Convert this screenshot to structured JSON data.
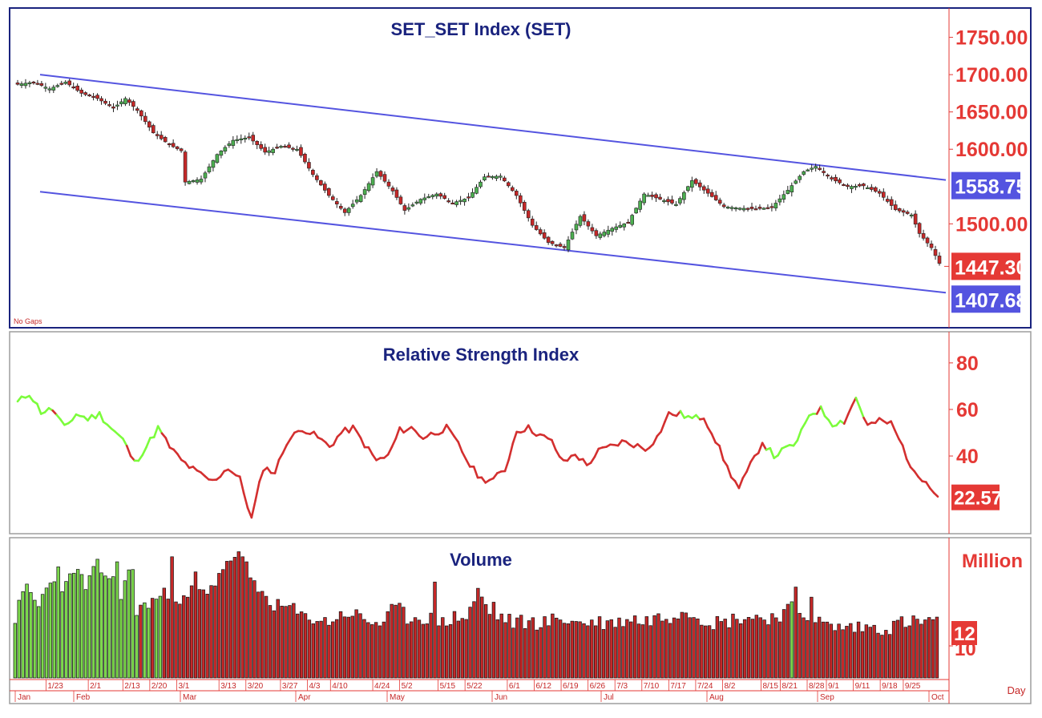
{
  "chart_data": [
    {
      "type": "candlestick",
      "title": "SET_SET Index  (SET)",
      "note": "No Gaps",
      "y_ticks": [
        "1750.00",
        "1700.00",
        "1650.00",
        "1600.00",
        "1500.00"
      ],
      "y_tick_values": [
        1750,
        1700,
        1650,
        1600,
        1500
      ],
      "ylim": [
        1365,
        1785
      ],
      "last_price": "1447.30",
      "channel_upper_label": "1558.75",
      "channel_lower_label": "1407.68",
      "channel_upper": {
        "start": 1700,
        "end": 1558.75
      },
      "channel_lower": {
        "start": 1543,
        "end": 1407.68
      },
      "anchor_closes": [
        [
          0,
          1687
        ],
        [
          4,
          1690
        ],
        [
          8,
          1681
        ],
        [
          12,
          1690
        ],
        [
          16,
          1675
        ],
        [
          20,
          1668
        ],
        [
          24,
          1655
        ],
        [
          27,
          1668
        ],
        [
          30,
          1652
        ],
        [
          34,
          1622
        ],
        [
          38,
          1606
        ],
        [
          41,
          1598
        ],
        [
          42,
          1556
        ],
        [
          46,
          1560
        ],
        [
          50,
          1593
        ],
        [
          54,
          1612
        ],
        [
          58,
          1616
        ],
        [
          62,
          1596
        ],
        [
          66,
          1604
        ],
        [
          70,
          1600
        ],
        [
          74,
          1566
        ],
        [
          78,
          1538
        ],
        [
          82,
          1515
        ],
        [
          86,
          1538
        ],
        [
          90,
          1570
        ],
        [
          94,
          1544
        ],
        [
          97,
          1518
        ],
        [
          101,
          1533
        ],
        [
          105,
          1540
        ],
        [
          109,
          1528
        ],
        [
          113,
          1535
        ],
        [
          117,
          1563
        ],
        [
          121,
          1564
        ],
        [
          125,
          1538
        ],
        [
          129,
          1498
        ],
        [
          133,
          1475
        ],
        [
          137,
          1468
        ],
        [
          141,
          1510
        ],
        [
          145,
          1484
        ],
        [
          149,
          1494
        ],
        [
          153,
          1502
        ],
        [
          157,
          1540
        ],
        [
          161,
          1533
        ],
        [
          165,
          1526
        ],
        [
          169,
          1558
        ],
        [
          173,
          1541
        ],
        [
          177,
          1523
        ],
        [
          181,
          1521
        ],
        [
          185,
          1520
        ],
        [
          189,
          1522
        ],
        [
          193,
          1545
        ],
        [
          197,
          1570
        ],
        [
          200,
          1577
        ],
        [
          204,
          1560
        ],
        [
          208,
          1550
        ],
        [
          212,
          1551
        ],
        [
          216,
          1541
        ],
        [
          220,
          1519
        ],
        [
          224,
          1512
        ],
        [
          226,
          1487
        ],
        [
          229,
          1468
        ],
        [
          231,
          1447
        ]
      ],
      "candle_colors": {
        "up": "#4caf50",
        "down": "#c62828",
        "channel": "#5454e0"
      }
    },
    {
      "type": "line",
      "title": "Relative Strength Index",
      "y_ticks": [
        "80",
        "60",
        "40"
      ],
      "y_tick_values": [
        80,
        60,
        40
      ],
      "ylim": [
        8,
        92
      ],
      "last_value": "22.57",
      "anchors": [
        [
          0,
          63
        ],
        [
          3,
          67
        ],
        [
          6,
          59
        ],
        [
          9,
          60
        ],
        [
          12,
          52
        ],
        [
          15,
          58
        ],
        [
          18,
          56
        ],
        [
          21,
          58
        ],
        [
          24,
          52
        ],
        [
          27,
          47
        ],
        [
          30,
          37
        ],
        [
          33,
          44
        ],
        [
          36,
          52
        ],
        [
          39,
          44
        ],
        [
          42,
          38
        ],
        [
          46,
          33
        ],
        [
          50,
          29
        ],
        [
          54,
          35
        ],
        [
          57,
          30
        ],
        [
          60,
          13
        ],
        [
          63,
          35
        ],
        [
          66,
          33
        ],
        [
          69,
          46
        ],
        [
          73,
          52
        ],
        [
          77,
          48
        ],
        [
          80,
          44
        ],
        [
          83,
          50
        ],
        [
          86,
          52
        ],
        [
          89,
          45
        ],
        [
          92,
          38
        ],
        [
          95,
          40
        ],
        [
          98,
          51
        ],
        [
          101,
          52
        ],
        [
          104,
          48
        ],
        [
          107,
          50
        ],
        [
          110,
          52
        ],
        [
          113,
          45
        ],
        [
          116,
          36
        ],
        [
          119,
          30
        ],
        [
          122,
          30
        ],
        [
          125,
          34
        ],
        [
          128,
          51
        ],
        [
          131,
          52
        ],
        [
          134,
          49
        ],
        [
          137,
          46
        ],
        [
          140,
          37
        ],
        [
          143,
          41
        ],
        [
          146,
          36
        ],
        [
          149,
          42
        ],
        [
          152,
          44
        ],
        [
          155,
          46
        ],
        [
          158,
          45
        ],
        [
          161,
          43
        ],
        [
          164,
          48
        ],
        [
          167,
          58
        ],
        [
          170,
          58
        ],
        [
          173,
          56
        ],
        [
          176,
          57
        ],
        [
          179,
          47
        ],
        [
          182,
          35
        ],
        [
          185,
          26
        ],
        [
          188,
          36
        ],
        [
          191,
          46
        ],
        [
          194,
          40
        ],
        [
          197,
          43
        ],
        [
          200,
          46
        ],
        [
          203,
          58
        ],
        [
          206,
          60
        ],
        [
          209,
          54
        ],
        [
          212,
          55
        ],
        [
          215,
          65
        ],
        [
          218,
          53
        ],
        [
          221,
          55
        ],
        [
          224,
          54
        ],
        [
          227,
          44
        ],
        [
          230,
          32
        ],
        [
          233,
          30
        ],
        [
          236,
          22.57
        ]
      ],
      "green_ranges": [
        [
          0,
          9
        ],
        [
          10,
          28
        ],
        [
          30,
          37
        ],
        [
          170,
          175
        ],
        [
          192,
          205
        ],
        [
          206,
          212
        ],
        [
          215,
          217
        ]
      ],
      "colors": {
        "up": "#7cfc3c",
        "down": "#d32f2f"
      }
    },
    {
      "type": "bar",
      "title": "Volume",
      "unit": "Million",
      "y_ticks": [
        "10"
      ],
      "last_value": "12",
      "x_unit": "Day",
      "date_labels": [
        "1/23",
        "2/1",
        "2/13",
        "2/20",
        "3/1",
        "3/13",
        "3/20",
        "3/27",
        "4/3",
        "4/10",
        "4/24",
        "5/2",
        "5/15",
        "5/22",
        "6/1",
        "6/12",
        "6/19",
        "6/26",
        "7/3",
        "7/10",
        "7/17",
        "7/24",
        "8/2",
        "8/15",
        "8/21",
        "8/28",
        "9/1",
        "9/11",
        "9/18",
        "9/25"
      ],
      "month_labels": [
        "Jan",
        "Feb",
        "Mar",
        "Apr",
        "May",
        "Jun",
        "Jul",
        "Aug",
        "Sep",
        "Oct"
      ],
      "green_bars": [
        0,
        1,
        2,
        3,
        4,
        5,
        6,
        7,
        8,
        9,
        10,
        11,
        12,
        13,
        14,
        15,
        16,
        17,
        18,
        19,
        20,
        21,
        22,
        23,
        24,
        25,
        26,
        27,
        28,
        29,
        30,
        31,
        33,
        34,
        36,
        37,
        198
      ],
      "anchors": [
        [
          0,
          12
        ],
        [
          3,
          18
        ],
        [
          6,
          14
        ],
        [
          9,
          20
        ],
        [
          12,
          16
        ],
        [
          15,
          22
        ],
        [
          18,
          18
        ],
        [
          21,
          22
        ],
        [
          24,
          20
        ],
        [
          27,
          17
        ],
        [
          30,
          22
        ],
        [
          31,
          13
        ],
        [
          34,
          15
        ],
        [
          37,
          16
        ],
        [
          40,
          17
        ],
        [
          43,
          15
        ],
        [
          46,
          18
        ],
        [
          49,
          16
        ],
        [
          52,
          21
        ],
        [
          55,
          24
        ],
        [
          58,
          20
        ],
        [
          61,
          18
        ],
        [
          64,
          16
        ],
        [
          67,
          14
        ],
        [
          70,
          14
        ],
        [
          73,
          12
        ],
        [
          76,
          12
        ],
        [
          79,
          11
        ],
        [
          82,
          12
        ],
        [
          85,
          13
        ],
        [
          88,
          12
        ],
        [
          91,
          11
        ],
        [
          94,
          11
        ],
        [
          97,
          14
        ],
        [
          100,
          12
        ],
        [
          103,
          12
        ],
        [
          106,
          12
        ],
        [
          109,
          11
        ],
        [
          112,
          12
        ],
        [
          115,
          12
        ],
        [
          118,
          17
        ],
        [
          121,
          13
        ],
        [
          124,
          12
        ],
        [
          127,
          11
        ],
        [
          130,
          11
        ],
        [
          133,
          11
        ],
        [
          136,
          11
        ],
        [
          139,
          12
        ],
        [
          142,
          11
        ],
        [
          145,
          11
        ],
        [
          148,
          11
        ],
        [
          151,
          11
        ],
        [
          154,
          11
        ],
        [
          157,
          12
        ],
        [
          160,
          11
        ],
        [
          163,
          12
        ],
        [
          166,
          12
        ],
        [
          169,
          13
        ],
        [
          172,
          13
        ],
        [
          175,
          12
        ],
        [
          178,
          11
        ],
        [
          181,
          11
        ],
        [
          184,
          12
        ],
        [
          187,
          12
        ],
        [
          190,
          12
        ],
        [
          193,
          12
        ],
        [
          196,
          13
        ],
        [
          199,
          14
        ],
        [
          202,
          12
        ],
        [
          205,
          11
        ],
        [
          208,
          10
        ],
        [
          211,
          10
        ],
        [
          214,
          10
        ],
        [
          217,
          10
        ],
        [
          220,
          10
        ],
        [
          223,
          10
        ],
        [
          226,
          11
        ],
        [
          229,
          11
        ],
        [
          232,
          11
        ],
        [
          235,
          12
        ]
      ],
      "spikes": {
        "11": 22,
        "26": 23,
        "40": 24,
        "46": 21,
        "57": 25,
        "58": 24,
        "59": 23,
        "107": 19,
        "122": 15,
        "170": 13,
        "199": 18,
        "203": 16
      }
    }
  ]
}
